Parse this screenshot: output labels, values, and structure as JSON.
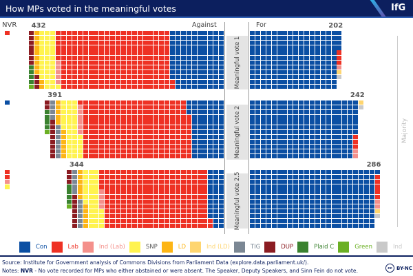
{
  "header": {
    "title": "How MPs voted in the meaningful votes",
    "logo": "IfG"
  },
  "labels": {
    "nvr": "NVR",
    "against": "Against",
    "for": "For",
    "majority": "Majority"
  },
  "colors": {
    "Con": "#0b4fa3",
    "Lab": "#ee3124",
    "Ind (Lab)": "#f4908b",
    "SNP": "#fff34f",
    "LD": "#fdb515",
    "Ind (LD)": "#fed570",
    "TIG": "#7b8794",
    "DUP": "#8b1c22",
    "Plaid C": "#3b8230",
    "Green": "#6bb024",
    "Ind": "#c9c9c9"
  },
  "legend": [
    {
      "label": "Con",
      "color": "#0b4fa3"
    },
    {
      "label": "Lab",
      "color": "#ee3124"
    },
    {
      "label": "Ind (Lab)",
      "color": "#f4908b"
    },
    {
      "label": "SNP",
      "color": "#fff34f",
      "text_color": "#555555"
    },
    {
      "label": "LD",
      "color": "#fdb515"
    },
    {
      "label": "Ind (LD)",
      "color": "#fed570"
    },
    {
      "label": "TIG",
      "color": "#7b8794"
    },
    {
      "label": "DUP",
      "color": "#8b1c22"
    },
    {
      "label": "Plaid C",
      "color": "#3b8230"
    },
    {
      "label": "Green",
      "color": "#6bb024"
    },
    {
      "label": "Ind",
      "color": "#c9c9c9"
    }
  ],
  "chart_data": {
    "type": "waffle",
    "rows_per_block": 12,
    "votes": [
      {
        "name": "Meaningful vote 1",
        "against_total": "432",
        "for_total": "202",
        "against": [
          [
            "Con",
            118
          ],
          [
            "Lab",
            248
          ],
          [
            "Ind (Lab)",
            5
          ],
          [
            "SNP",
            35
          ],
          [
            "LD",
            11
          ],
          [
            "DUP",
            10
          ],
          [
            "Plaid C",
            4
          ],
          [
            "Green",
            1
          ]
        ],
        "for": [
          [
            "Con",
            196
          ],
          [
            "Lab",
            3
          ],
          [
            "Ind (Lab)",
            1
          ],
          [
            "Ind (LD)",
            1
          ],
          [
            "Ind",
            1
          ]
        ],
        "nvr": [
          [
            "Lab",
            1
          ]
        ]
      },
      {
        "name": "Meaningful vote 2",
        "against_total": "391",
        "for_total": "242",
        "against": [
          [
            "Con",
            75
          ],
          [
            "Lab",
            238
          ],
          [
            "Ind (Lab)",
            6
          ],
          [
            "SNP",
            35
          ],
          [
            "LD",
            11
          ],
          [
            "TIG",
            11
          ],
          [
            "DUP",
            10
          ],
          [
            "Plaid C",
            4
          ],
          [
            "Green",
            1
          ]
        ],
        "for": [
          [
            "Con",
            235
          ],
          [
            "Lab",
            3
          ],
          [
            "Ind (Lab)",
            2
          ],
          [
            "Ind (LD)",
            1
          ],
          [
            "Ind",
            1
          ]
        ],
        "nvr": [
          [
            "Con",
            1
          ]
        ]
      },
      {
        "name": "Meaningful vote 2.5",
        "against_total": "344",
        "for_total": "286",
        "against": [
          [
            "Con",
            34
          ],
          [
            "Lab",
            234
          ],
          [
            "Ind (Lab)",
            4
          ],
          [
            "SNP",
            35
          ],
          [
            "LD",
            11
          ],
          [
            "TIG",
            11
          ],
          [
            "DUP",
            10
          ],
          [
            "Plaid C",
            4
          ],
          [
            "Green",
            1
          ]
        ],
        "for": [
          [
            "Con",
            277
          ],
          [
            "Lab",
            5
          ],
          [
            "Ind (Lab)",
            2
          ],
          [
            "Ind (LD)",
            1
          ],
          [
            "Ind",
            1
          ]
        ],
        "nvr": [
          [
            "Lab",
            2
          ],
          [
            "Ind (Lab)",
            1
          ],
          [
            "SNP",
            1
          ]
        ]
      }
    ]
  },
  "footer": {
    "source": "Source: Institute for Government analysis of Commons Divisions from Parliament Data (explore.data.parliament.uk/).",
    "notes_prefix": "Notes: ",
    "notes_bold": "NVR",
    "notes_text": " - No vote recorded for MPs who either abstained or were absent. The Speaker, Deputy Speakers, and Sinn Fein do not vote.",
    "license_icon": "cc",
    "license": "BY-NC"
  }
}
